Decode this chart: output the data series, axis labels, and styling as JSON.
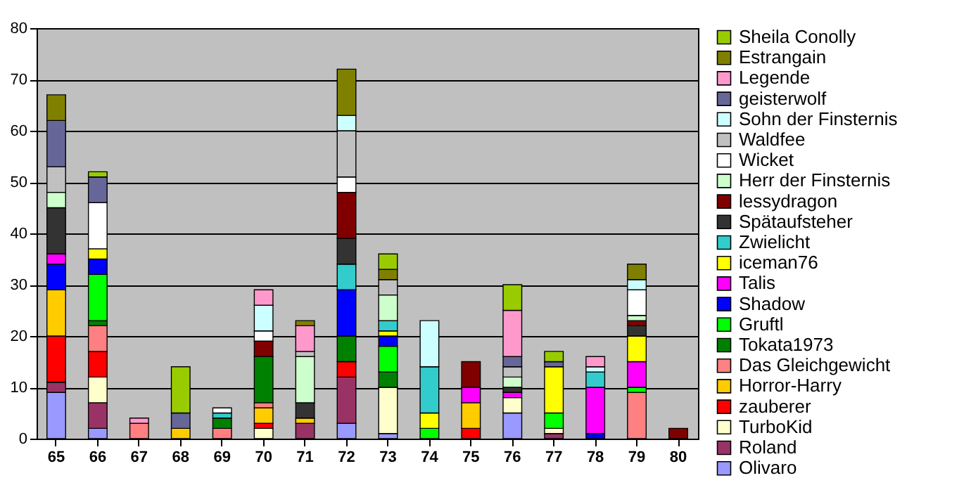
{
  "chart_data": {
    "type": "bar",
    "stacked": true,
    "categories": [
      "65",
      "66",
      "67",
      "68",
      "69",
      "70",
      "71",
      "72",
      "73",
      "74",
      "75",
      "76",
      "77",
      "78",
      "79",
      "80"
    ],
    "ylim": [
      0,
      80
    ],
    "yticks": [
      0,
      10,
      20,
      30,
      40,
      50,
      60,
      70,
      80
    ],
    "grid": "y",
    "legend": "right",
    "series": [
      {
        "name": "Olivaro",
        "color": "#9999ff",
        "values": [
          9,
          2,
          null,
          null,
          null,
          null,
          null,
          3,
          1,
          null,
          null,
          5,
          null,
          null,
          null,
          null
        ]
      },
      {
        "name": "Roland",
        "color": "#993366",
        "values": [
          2,
          5,
          null,
          null,
          null,
          null,
          3,
          9,
          null,
          null,
          null,
          null,
          1,
          null,
          null,
          null
        ]
      },
      {
        "name": "TurboKid",
        "color": "#ffffcc",
        "values": [
          null,
          5,
          null,
          null,
          null,
          2,
          null,
          null,
          9,
          null,
          null,
          3,
          1,
          null,
          null,
          null
        ]
      },
      {
        "name": "zauberer",
        "color": "#ff0000",
        "values": [
          9,
          5,
          null,
          null,
          null,
          1,
          null,
          3,
          null,
          null,
          2,
          null,
          null,
          null,
          null,
          null
        ]
      },
      {
        "name": "Horror-Harry",
        "color": "#ffcc00",
        "values": [
          9,
          null,
          null,
          2,
          null,
          3,
          1,
          null,
          null,
          null,
          5,
          null,
          null,
          null,
          null,
          null
        ]
      },
      {
        "name": "Das Gleichgewicht",
        "color": "#ff8080",
        "values": [
          null,
          5,
          3,
          null,
          2,
          1,
          null,
          null,
          null,
          null,
          null,
          null,
          null,
          null,
          9,
          null
        ]
      },
      {
        "name": "Tokata1973",
        "color": "#008000",
        "values": [
          null,
          1,
          null,
          null,
          2,
          9,
          null,
          5,
          3,
          null,
          null,
          null,
          null,
          null,
          null,
          null
        ]
      },
      {
        "name": "Gruftl",
        "color": "#00ff00",
        "values": [
          null,
          9,
          null,
          null,
          null,
          null,
          null,
          null,
          5,
          2,
          null,
          null,
          3,
          null,
          1,
          null
        ]
      },
      {
        "name": "Shadow",
        "color": "#0000ff",
        "values": [
          5,
          3,
          null,
          null,
          null,
          null,
          null,
          9,
          2,
          null,
          null,
          null,
          null,
          1,
          null,
          null
        ]
      },
      {
        "name": "Talis",
        "color": "#ff00ff",
        "values": [
          2,
          null,
          null,
          null,
          null,
          null,
          null,
          null,
          null,
          null,
          3,
          1,
          null,
          9,
          5,
          null
        ]
      },
      {
        "name": "iceman76",
        "color": "#ffff00",
        "values": [
          null,
          2,
          null,
          null,
          null,
          null,
          null,
          null,
          1,
          3,
          null,
          null,
          9,
          null,
          5,
          null
        ]
      },
      {
        "name": "Zwielicht",
        "color": "#33cccc",
        "values": [
          null,
          null,
          null,
          null,
          1,
          null,
          null,
          5,
          2,
          9,
          null,
          null,
          null,
          3,
          null,
          null
        ]
      },
      {
        "name": "Spätaufsteher",
        "color": "#333333",
        "values": [
          9,
          null,
          null,
          null,
          null,
          null,
          3,
          5,
          null,
          null,
          null,
          1,
          null,
          null,
          2,
          null
        ]
      },
      {
        "name": "lessydragon",
        "color": "#800000",
        "values": [
          null,
          null,
          null,
          null,
          null,
          3,
          null,
          9,
          null,
          null,
          5,
          null,
          null,
          null,
          1,
          2
        ]
      },
      {
        "name": "Herr der Finsternis",
        "color": "#ccffcc",
        "values": [
          3,
          null,
          null,
          null,
          null,
          null,
          9,
          null,
          5,
          null,
          null,
          2,
          null,
          null,
          1,
          null
        ]
      },
      {
        "name": "Wicket",
        "color": "#ffffff",
        "values": [
          null,
          9,
          null,
          null,
          1,
          2,
          null,
          3,
          null,
          null,
          null,
          null,
          null,
          null,
          5,
          null
        ]
      },
      {
        "name": "Waldfee",
        "color": "#c0c0c0",
        "values": [
          5,
          null,
          null,
          null,
          null,
          null,
          1,
          9,
          3,
          null,
          null,
          2,
          null,
          null,
          null,
          null
        ]
      },
      {
        "name": "Sohn der Finsternis",
        "color": "#ccffff",
        "values": [
          null,
          null,
          null,
          null,
          null,
          5,
          null,
          3,
          null,
          9,
          null,
          null,
          null,
          1,
          2,
          null
        ]
      },
      {
        "name": "geisterwolf",
        "color": "#666699",
        "values": [
          9,
          5,
          null,
          3,
          null,
          null,
          null,
          null,
          null,
          null,
          null,
          2,
          1,
          null,
          null,
          null
        ]
      },
      {
        "name": "Legende",
        "color": "#ff99cc",
        "values": [
          null,
          null,
          1,
          null,
          null,
          3,
          5,
          null,
          null,
          null,
          null,
          9,
          null,
          2,
          null,
          null
        ]
      },
      {
        "name": "Estrangain",
        "color": "#808000",
        "values": [
          5,
          null,
          null,
          null,
          null,
          null,
          1,
          9,
          2,
          null,
          null,
          null,
          null,
          null,
          3,
          null
        ]
      },
      {
        "name": "Sheila Conolly",
        "color": "#99cc00",
        "values": [
          null,
          1,
          null,
          9,
          null,
          null,
          null,
          null,
          3,
          null,
          null,
          5,
          2,
          null,
          null,
          null
        ]
      }
    ]
  }
}
